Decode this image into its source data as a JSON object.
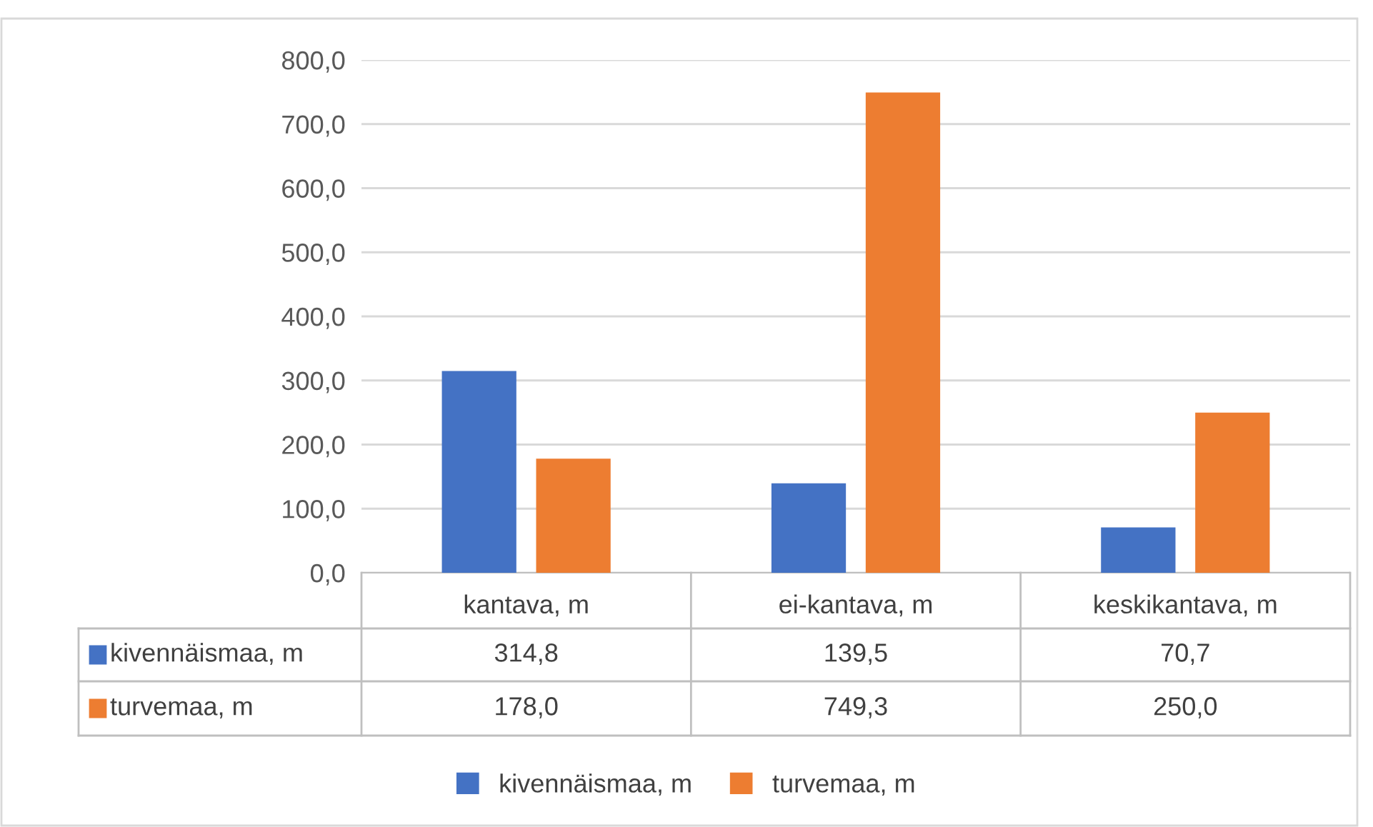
{
  "chart_data": {
    "type": "bar",
    "categories": [
      "kantava, m",
      "ei-kantava, m",
      "keskikantava, m"
    ],
    "series": [
      {
        "name": "kivennäismaa, m",
        "color": "#4472c4",
        "values": [
          314.8,
          139.5,
          70.7
        ],
        "value_labels": [
          "314,8",
          "139,5",
          "70,7"
        ]
      },
      {
        "name": "turvemaa, m",
        "color": "#ed7d31",
        "values": [
          178.0,
          749.3,
          250.0
        ],
        "value_labels": [
          "178,0",
          "749,3",
          "250,0"
        ]
      }
    ],
    "ylim": [
      0,
      800
    ],
    "yticks": [
      {
        "value": 0,
        "label": "0,0"
      },
      {
        "value": 100,
        "label": "100,0"
      },
      {
        "value": 200,
        "label": "200,0"
      },
      {
        "value": 300,
        "label": "300,0"
      },
      {
        "value": 400,
        "label": "400,0"
      },
      {
        "value": 500,
        "label": "500,0"
      },
      {
        "value": 600,
        "label": "600,0"
      },
      {
        "value": 700,
        "label": "700,0"
      },
      {
        "value": 800,
        "label": "800,0"
      }
    ],
    "grid": "y",
    "legend": "bottom"
  }
}
